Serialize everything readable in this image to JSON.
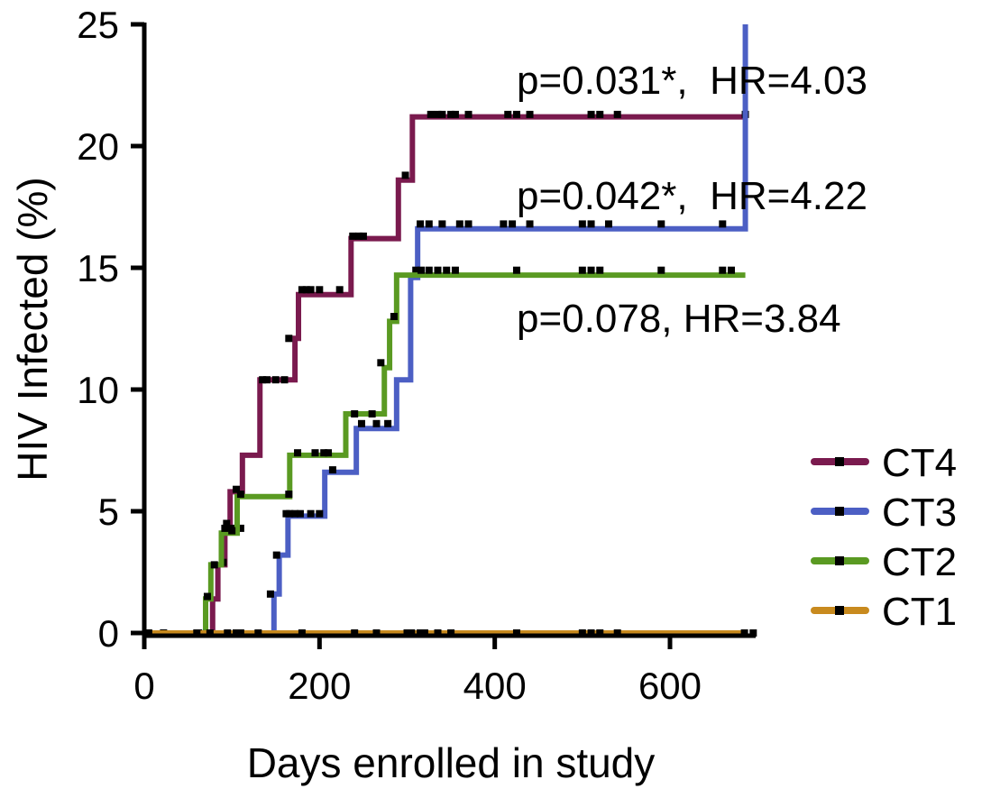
{
  "chart_data": {
    "type": "line",
    "subtype": "step (Kaplan-Meier cumulative incidence) with censor marks",
    "title": "",
    "xlabel": "Days enrolled in study",
    "ylabel": "HIV Infected (%)",
    "xlim": [
      0,
      700
    ],
    "ylim": [
      0,
      25
    ],
    "x_ticks": [
      0,
      200,
      400,
      600
    ],
    "y_ticks": [
      0,
      5,
      10,
      15,
      20,
      25
    ],
    "grid": false,
    "legend_position": "right, lower",
    "series": [
      {
        "name": "CT4",
        "color": "#7a1a4e",
        "steps": [
          [
            0,
            0
          ],
          [
            72,
            0
          ],
          [
            78,
            1.4
          ],
          [
            84,
            2.8
          ],
          [
            92,
            4.3
          ],
          [
            98,
            5.8
          ],
          [
            112,
            7.3
          ],
          [
            132,
            10.4
          ],
          [
            172,
            12.1
          ],
          [
            176,
            13.9
          ],
          [
            236,
            16.2
          ],
          [
            290,
            18.6
          ],
          [
            306,
            21.2
          ],
          [
            686,
            21.2
          ]
        ],
        "censor": [
          [
            22,
            0
          ],
          [
            62,
            0
          ],
          [
            73,
            0
          ],
          [
            90,
            2.9
          ],
          [
            94,
            4.5
          ],
          [
            100,
            4.3
          ],
          [
            105,
            5.9
          ],
          [
            110,
            4.3
          ],
          [
            135,
            10.4
          ],
          [
            140,
            10.4
          ],
          [
            150,
            10.4
          ],
          [
            160,
            10.4
          ],
          [
            165,
            12.1
          ],
          [
            180,
            14.1
          ],
          [
            185,
            14.1
          ],
          [
            190,
            14.1
          ],
          [
            200,
            14.1
          ],
          [
            223,
            14.1
          ],
          [
            238,
            16.3
          ],
          [
            245,
            16.3
          ],
          [
            250,
            16.3
          ],
          [
            298,
            18.8
          ],
          [
            327,
            21.3
          ],
          [
            335,
            21.3
          ],
          [
            340,
            21.3
          ],
          [
            350,
            21.3
          ],
          [
            355,
            21.3
          ],
          [
            370,
            21.3
          ],
          [
            415,
            21.3
          ],
          [
            425,
            21.3
          ],
          [
            440,
            21.3
          ],
          [
            510,
            21.3
          ],
          [
            520,
            21.3
          ],
          [
            540,
            21.3
          ],
          [
            686,
            21.3
          ]
        ]
      },
      {
        "name": "CT3",
        "color": "#4c5fc4",
        "steps": [
          [
            0,
            0
          ],
          [
            140,
            0
          ],
          [
            148,
            1.6
          ],
          [
            154,
            3.2
          ],
          [
            164,
            4.8
          ],
          [
            206,
            6.6
          ],
          [
            242,
            8.4
          ],
          [
            288,
            10.4
          ],
          [
            304,
            14.6
          ],
          [
            312,
            16.6
          ],
          [
            686,
            16.6
          ],
          [
            686,
            25
          ]
        ],
        "censor": [
          [
            144,
            1.6
          ],
          [
            151,
            3.2
          ],
          [
            162,
            4.9
          ],
          [
            166,
            4.9
          ],
          [
            172,
            4.9
          ],
          [
            178,
            4.9
          ],
          [
            190,
            4.9
          ],
          [
            200,
            4.9
          ],
          [
            215,
            6.7
          ],
          [
            248,
            8.6
          ],
          [
            265,
            8.6
          ],
          [
            278,
            8.6
          ],
          [
            310,
            14.9
          ],
          [
            315,
            16.8
          ],
          [
            325,
            16.8
          ],
          [
            340,
            16.8
          ],
          [
            360,
            16.8
          ],
          [
            370,
            16.8
          ],
          [
            410,
            16.8
          ],
          [
            420,
            16.8
          ],
          [
            440,
            16.8
          ],
          [
            500,
            16.8
          ],
          [
            510,
            16.8
          ],
          [
            530,
            16.8
          ],
          [
            590,
            16.8
          ],
          [
            660,
            16.8
          ]
        ]
      },
      {
        "name": "CT2",
        "color": "#5a9a22",
        "steps": [
          [
            0,
            0
          ],
          [
            66,
            0
          ],
          [
            70,
            1.4
          ],
          [
            76,
            2.8
          ],
          [
            88,
            4.1
          ],
          [
            106,
            5.6
          ],
          [
            166,
            7.3
          ],
          [
            230,
            9.0
          ],
          [
            274,
            10.9
          ],
          [
            280,
            12.8
          ],
          [
            288,
            14.7
          ],
          [
            686,
            14.7
          ]
        ],
        "censor": [
          [
            72,
            1.5
          ],
          [
            80,
            2.8
          ],
          [
            92,
            4.3
          ],
          [
            100,
            4.2
          ],
          [
            110,
            5.7
          ],
          [
            165,
            5.7
          ],
          [
            175,
            7.4
          ],
          [
            195,
            7.4
          ],
          [
            205,
            7.4
          ],
          [
            210,
            7.4
          ],
          [
            240,
            9.0
          ],
          [
            260,
            9.0
          ],
          [
            270,
            11.1
          ],
          [
            285,
            13.0
          ],
          [
            316,
            14.9
          ],
          [
            325,
            14.9
          ],
          [
            335,
            14.9
          ],
          [
            345,
            14.9
          ],
          [
            355,
            14.9
          ],
          [
            425,
            14.9
          ],
          [
            500,
            14.9
          ],
          [
            510,
            14.9
          ],
          [
            520,
            14.9
          ],
          [
            590,
            14.9
          ],
          [
            660,
            14.9
          ],
          [
            670,
            14.9
          ]
        ]
      },
      {
        "name": "CT1",
        "color": "#c88a1e",
        "steps": [
          [
            0,
            0
          ],
          [
            686,
            0
          ]
        ],
        "censor": [
          [
            5,
            0
          ],
          [
            60,
            0
          ],
          [
            75,
            0
          ],
          [
            95,
            0
          ],
          [
            105,
            0
          ],
          [
            110,
            0
          ],
          [
            130,
            0
          ],
          [
            180,
            0
          ],
          [
            240,
            0
          ],
          [
            265,
            0
          ],
          [
            300,
            0
          ],
          [
            305,
            0
          ],
          [
            315,
            0
          ],
          [
            320,
            0
          ],
          [
            335,
            0
          ],
          [
            350,
            0
          ],
          [
            425,
            0
          ],
          [
            500,
            0
          ],
          [
            510,
            0
          ],
          [
            520,
            0
          ],
          [
            540,
            0
          ],
          [
            685,
            0
          ],
          [
            695,
            0
          ]
        ]
      }
    ],
    "annotations": [
      {
        "text": "p=0.031*,  HR=4.03",
        "near_series": "CT4"
      },
      {
        "text": "p=0.042*,  HR=4.22",
        "near_series": "CT3"
      },
      {
        "text": "p=0.078, HR=3.84",
        "near_series": "CT2"
      }
    ]
  }
}
